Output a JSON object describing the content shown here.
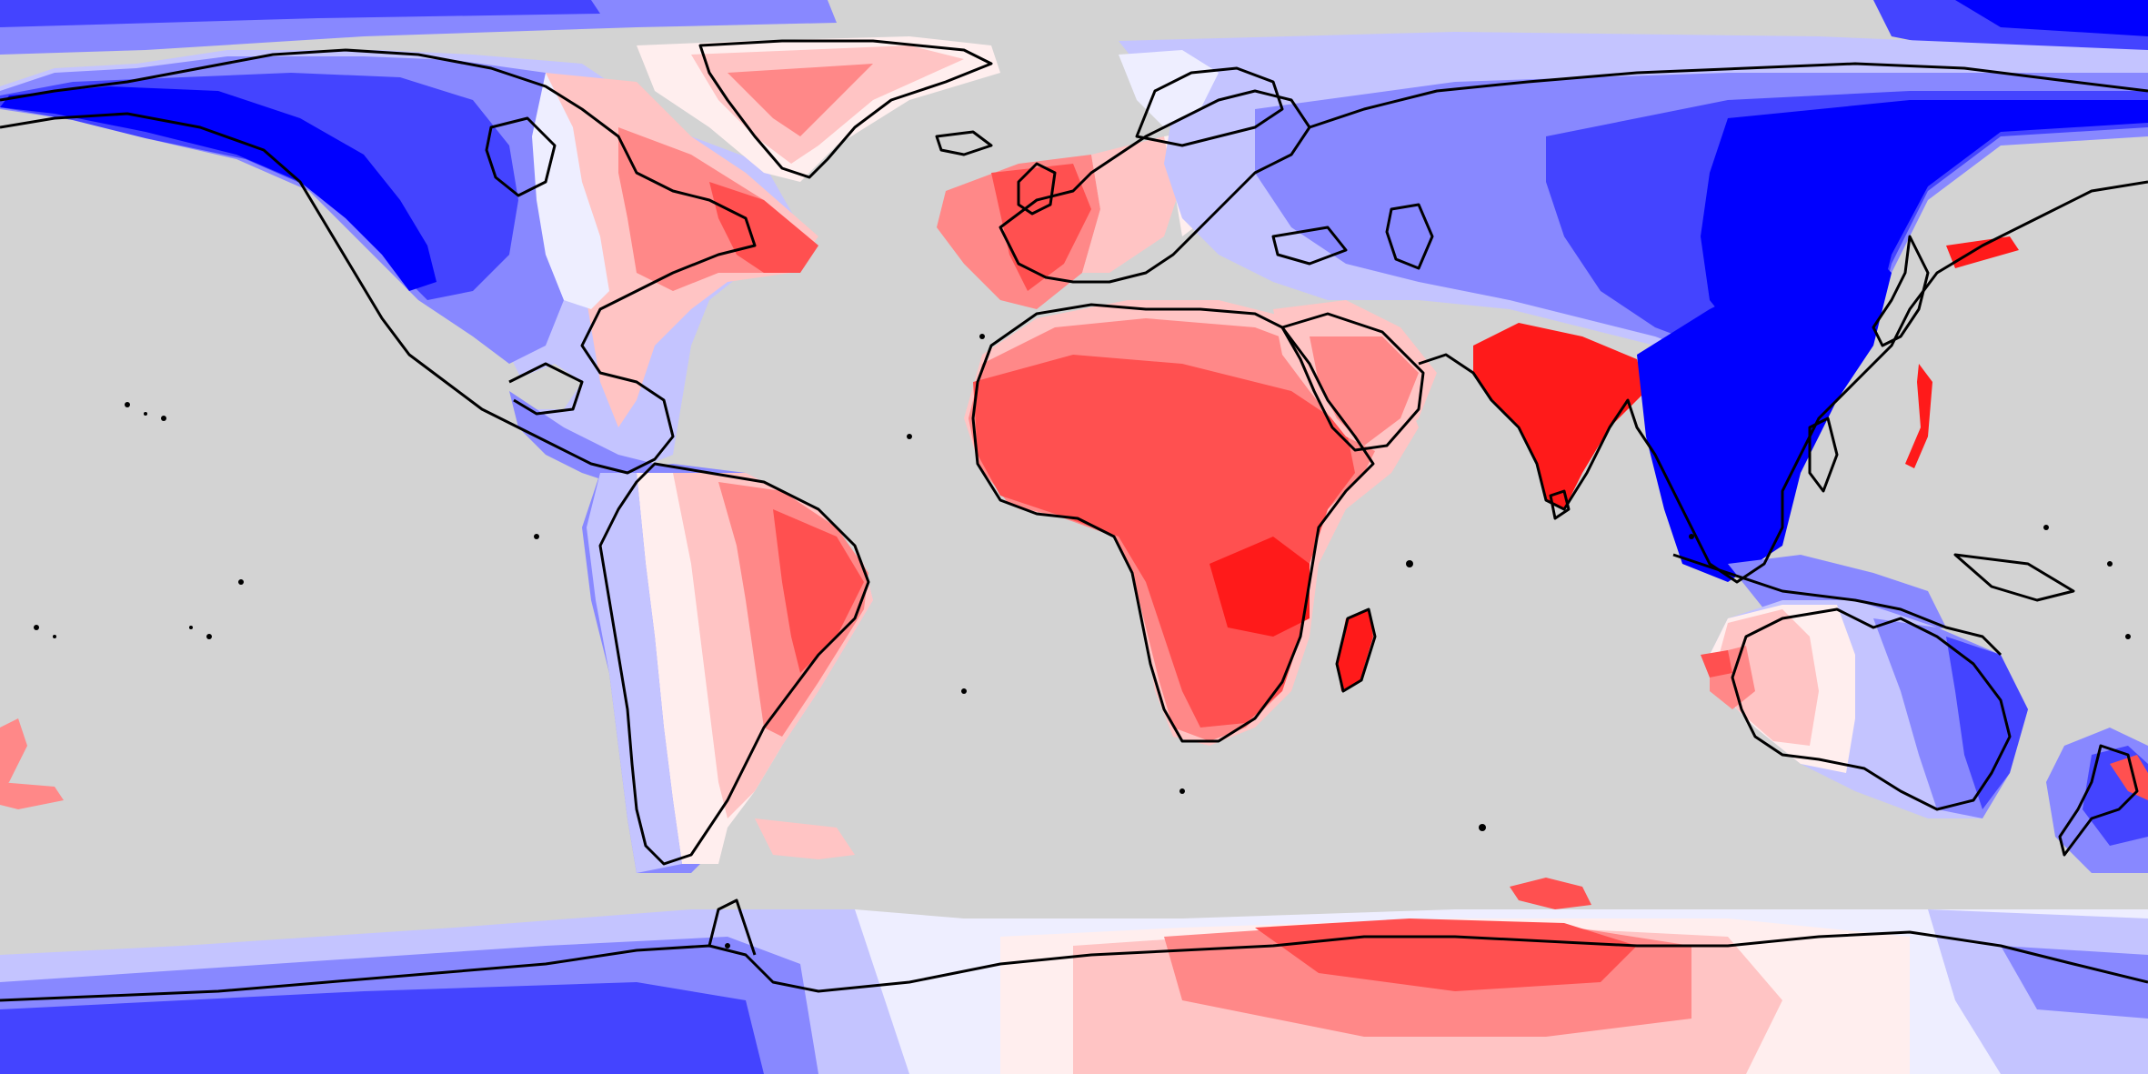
{
  "map": {
    "projection": "equirectangular",
    "coastline_color": "#000000",
    "ocean_color": "#d3d3d3",
    "diverging_palette": {
      "neg_3": "#0000ff",
      "neg_2": "#4444ff",
      "neg_1": "#8888ff",
      "neg_0": "#c4c4ff",
      "zero_neg": "#eeeeff",
      "zero_pos": "#ffeeee",
      "pos_0": "#ffc4c4",
      "pos_1": "#ff8888",
      "pos_2": "#ff5050",
      "pos_3": "#ff1a1a"
    },
    "regions": [
      {
        "name": "north-america",
        "sign": "negative"
      },
      {
        "name": "greenland",
        "sign": "positive"
      },
      {
        "name": "eastern-north-america",
        "sign": "positive"
      },
      {
        "name": "south-america-west",
        "sign": "negative"
      },
      {
        "name": "south-america-east",
        "sign": "positive"
      },
      {
        "name": "western-europe",
        "sign": "positive"
      },
      {
        "name": "eurasia",
        "sign": "negative"
      },
      {
        "name": "africa",
        "sign": "positive"
      },
      {
        "name": "arabia",
        "sign": "positive"
      },
      {
        "name": "india",
        "sign": "positive"
      },
      {
        "name": "east-asia",
        "sign": "negative"
      },
      {
        "name": "australia-west",
        "sign": "positive"
      },
      {
        "name": "australia-east",
        "sign": "negative"
      },
      {
        "name": "new-zealand",
        "sign": "negative"
      },
      {
        "name": "antarctica-west",
        "sign": "negative"
      },
      {
        "name": "antarctica-east",
        "sign": "positive"
      }
    ]
  }
}
